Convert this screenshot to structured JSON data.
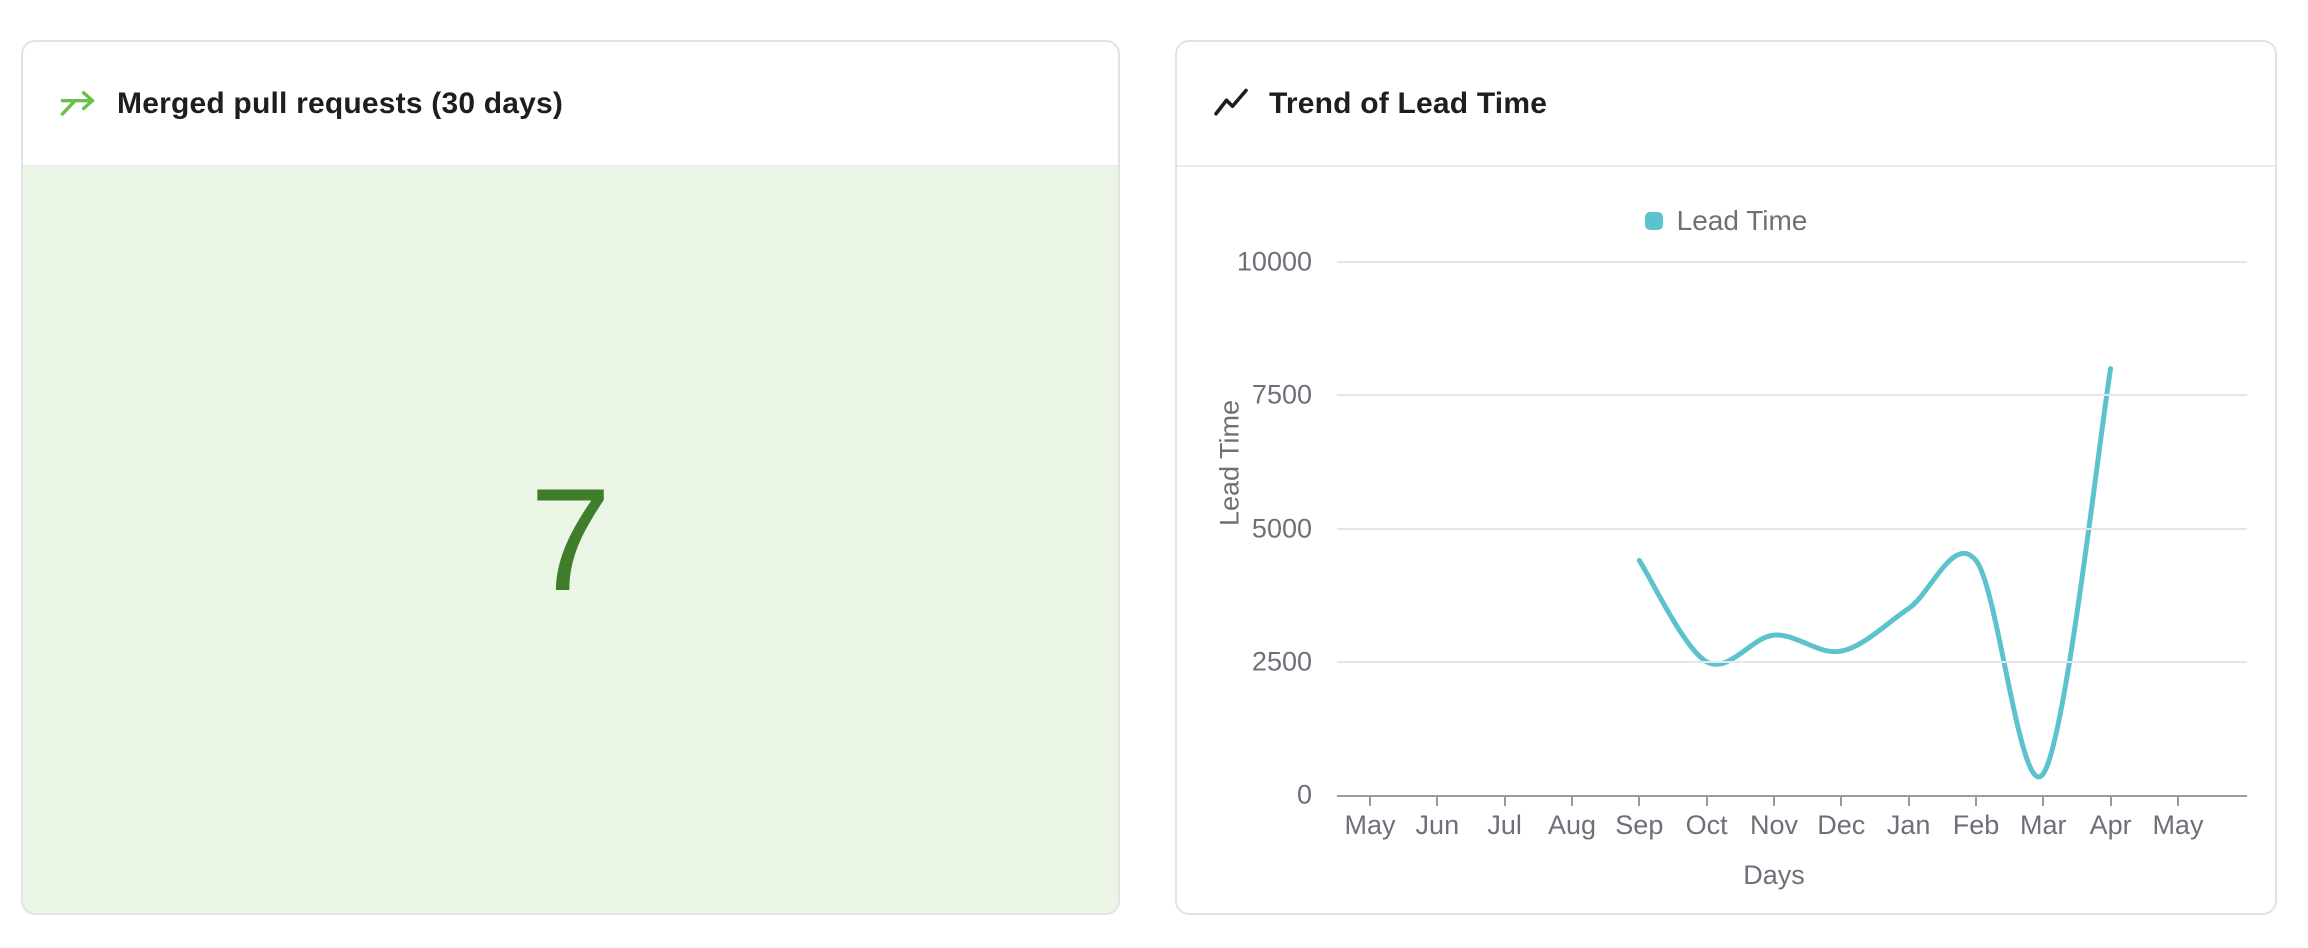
{
  "colors": {
    "icon_green": "#68c046",
    "value_green": "#3e7e2b",
    "panel_green": "#eaf5e6",
    "teal": "#5bc2ce",
    "axis_text": "#6e7079",
    "grid_line": "#e6e6e6",
    "axis_line": "#9a9a9a",
    "card_border": "#e3e3e3",
    "title_text": "#1e1e1e"
  },
  "left_card": {
    "icon": "merge-arrow-icon",
    "title": "Merged pull requests (30 days)",
    "value": "7"
  },
  "right_card": {
    "icon": "trend-line-icon",
    "title": "Trend of Lead Time"
  },
  "chart_data": {
    "type": "line",
    "title": "Trend of Lead Time",
    "x": [
      "May",
      "Jun",
      "Jul",
      "Aug",
      "Sep",
      "Oct",
      "Nov",
      "Dec",
      "Jan",
      "Feb",
      "Mar",
      "Apr",
      "May"
    ],
    "series": [
      {
        "name": "Lead Time",
        "color": "#5bc2ce",
        "values": [
          null,
          null,
          null,
          null,
          4400,
          2500,
          3000,
          2700,
          3500,
          4400,
          400,
          8000,
          null
        ]
      }
    ],
    "xlabel": "Days",
    "ylabel": "Lead Time",
    "ylim": [
      0,
      10000
    ],
    "yticks": [
      0,
      2500,
      5000,
      7500,
      10000
    ],
    "grid": true,
    "smooth": true,
    "legend_position": "top-center"
  }
}
